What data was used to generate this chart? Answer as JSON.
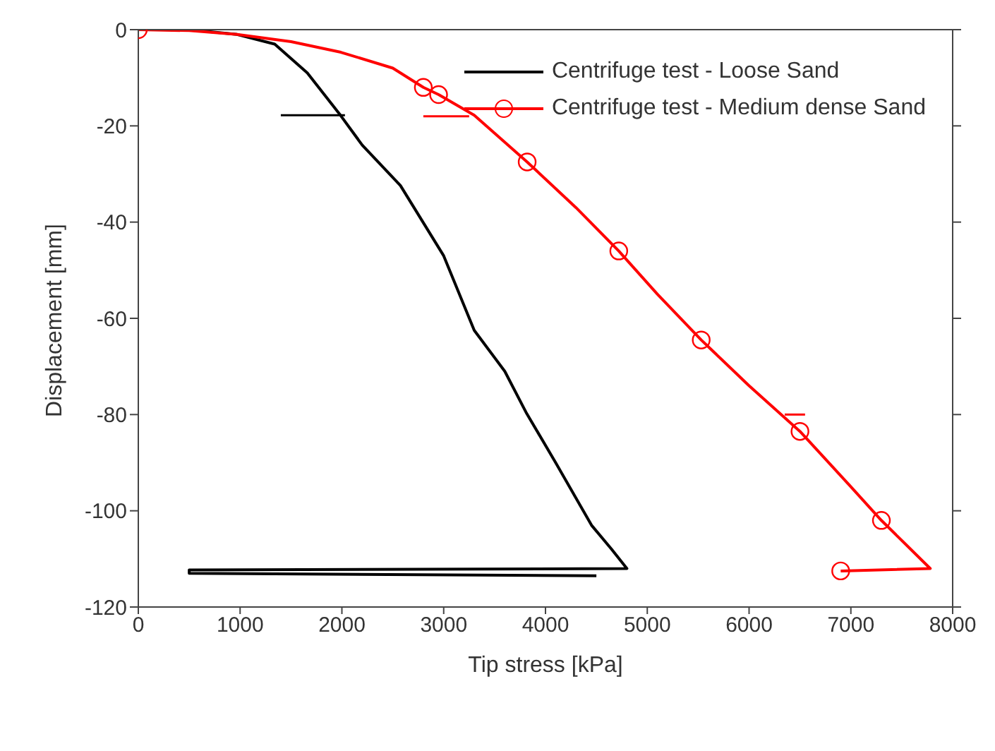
{
  "chart_data": {
    "type": "line",
    "xlabel": "Tip stress [kPa]",
    "ylabel": "Displacement [mm]",
    "xlim": [
      0,
      8000
    ],
    "xticks": [
      0,
      1000,
      2000,
      3000,
      4000,
      5000,
      6000,
      7000,
      8000
    ],
    "ylim": [
      -120,
      0
    ],
    "yticks": [
      -120,
      -100,
      -80,
      -60,
      -40,
      -20,
      0
    ],
    "grid": false,
    "legend": "top right",
    "series": [
      {
        "name": "Centrifuge test - Loose Sand",
        "color": "#000000",
        "x": [
          500,
          970,
          1340,
          1660,
          1986,
          2200,
          2575,
          3000,
          3300,
          3600,
          3808,
          4100,
          4452,
          4650,
          4800,
          500,
          500,
          4500
        ],
        "values": [
          0,
          -1,
          -3,
          -9,
          -17.8,
          -24,
          -32.4,
          -47,
          -62.5,
          -71,
          -79.5,
          -90,
          -103,
          -108,
          -112,
          -112.3,
          -113,
          -113.5
        ]
      },
      {
        "name": "Centrifuge test - Medium dense Sand",
        "color": "#ff0000",
        "x": [
          0,
          500,
          970,
          1500,
          1990,
          2500,
          2800,
          2950,
          3300,
          3820,
          4300,
          4720,
          5100,
          5530,
          6000,
          6500,
          7000,
          7300,
          7780,
          6900
        ],
        "values": [
          0,
          -0.2,
          -1,
          -2.5,
          -4.7,
          -8,
          -12,
          -13.5,
          -17.8,
          -27.5,
          -37,
          -46,
          -55,
          -64.5,
          -74,
          -83.5,
          -95,
          -102,
          -112,
          -112.5
        ]
      },
      {
        "type": "scatter",
        "color": "#ff0000",
        "marker": "circle",
        "x": [
          0,
          2800,
          2950,
          3820,
          4720,
          5530,
          6500,
          7300,
          6900
        ],
        "values": [
          0,
          -12,
          -13.5,
          -27.5,
          -46,
          -64.5,
          -83.5,
          -102,
          -112.5
        ]
      },
      {
        "color": "#000000",
        "x": [
          1400,
          2030
        ],
        "values": [
          -17.8,
          -17.8
        ]
      },
      {
        "color": "#ff0000",
        "x": [
          2800,
          3250
        ],
        "values": [
          -18,
          -18
        ]
      },
      {
        "color": "#ff0000",
        "x": [
          6350,
          6550
        ],
        "values": [
          -80,
          -80
        ]
      }
    ]
  }
}
